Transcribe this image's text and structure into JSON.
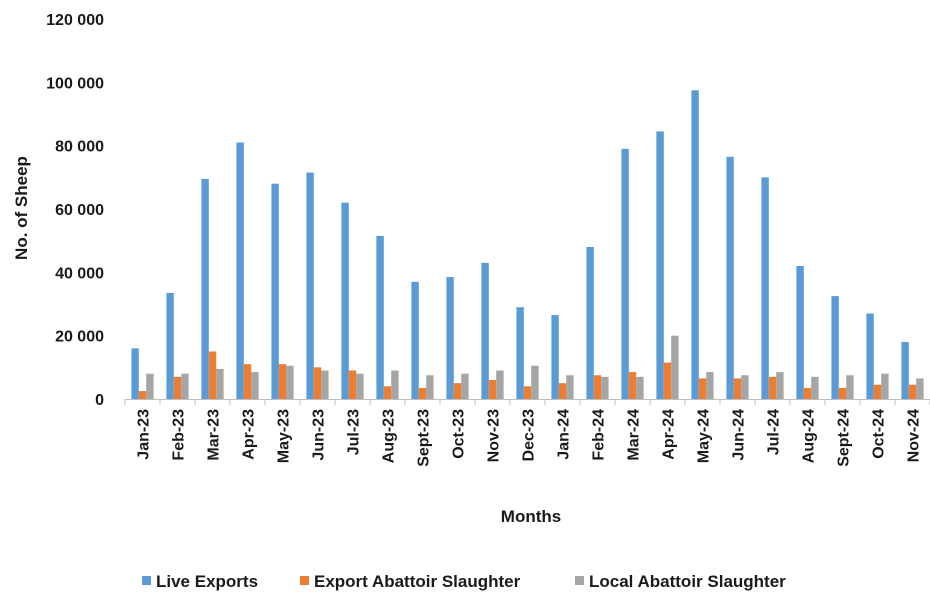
{
  "chart_data": {
    "type": "bar",
    "title": "",
    "xlabel": "Months",
    "ylabel": "No. of Sheep",
    "ylim": [
      0,
      120000
    ],
    "yticks": [
      "0",
      "20 000",
      "40 000",
      "60 000",
      "80 000",
      "100 000",
      "120 000"
    ],
    "grid": false,
    "legend_position": "bottom",
    "categories": [
      "Jan-23",
      "Feb-23",
      "Mar-23",
      "Apr-23",
      "May-23",
      "Jun-23",
      "Jul-23",
      "Aug-23",
      "Sept-23",
      "Oct-23",
      "Nov-23",
      "Dec-23",
      "Jan-24",
      "Feb-24",
      "Mar-24",
      "Apr-24",
      "May-24",
      "Jun-24",
      "Jul-24",
      "Aug-24",
      "Sept-24",
      "Oct-24",
      "Nov-24"
    ],
    "series": [
      {
        "name": "Live Exports",
        "color": "#5B9BD5",
        "values": [
          16000,
          33500,
          69500,
          81000,
          68000,
          71500,
          62000,
          51500,
          37000,
          38500,
          43000,
          29000,
          26500,
          48000,
          79000,
          84500,
          97500,
          76500,
          70000,
          42000,
          32500,
          27000,
          18000
        ]
      },
      {
        "name": "Export Abattoir Slaughter",
        "color": "#ED7D31",
        "values": [
          2500,
          7000,
          15000,
          11000,
          11000,
          10000,
          9000,
          4000,
          3500,
          5000,
          6000,
          4000,
          5000,
          7500,
          8500,
          11500,
          6500,
          6500,
          7000,
          3500,
          3500,
          4500,
          4500
        ]
      },
      {
        "name": "Local Abattoir Slaughter",
        "color": "#A5A5A5",
        "values": [
          8000,
          8000,
          9500,
          8500,
          10500,
          9000,
          8000,
          9000,
          7500,
          8000,
          9000,
          10500,
          7500,
          7000,
          7000,
          20000,
          8500,
          7500,
          8500,
          7000,
          7500,
          8000,
          6500
        ]
      }
    ]
  }
}
